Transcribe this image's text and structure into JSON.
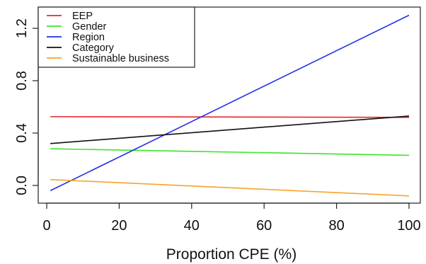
{
  "chart_data": {
    "type": "line",
    "title": "",
    "xlabel": "Proportion CPE (%)",
    "ylabel": "",
    "xlim": [
      1,
      100
    ],
    "ylim": [
      -0.06,
      1.34
    ],
    "x_ticks": [
      0,
      20,
      40,
      60,
      80,
      100
    ],
    "x_tick_labels": [
      "0",
      "20",
      "40",
      "60",
      "80",
      "100"
    ],
    "y_ticks": [
      0.0,
      0.4,
      0.8,
      1.2
    ],
    "y_tick_labels": [
      "0.0",
      "0.4",
      "0.8",
      "1.2"
    ],
    "grid": false,
    "legend_position": "top-left",
    "series": [
      {
        "name": "EEP",
        "color": "#e8272b",
        "x": [
          1,
          100
        ],
        "y": [
          0.525,
          0.52
        ]
      },
      {
        "name": "Gender",
        "color": "#3be62b",
        "x": [
          1,
          100
        ],
        "y": [
          0.28,
          0.23
        ]
      },
      {
        "name": "Region",
        "color": "#2330e8",
        "x": [
          1,
          100
        ],
        "y": [
          -0.04,
          1.3
        ]
      },
      {
        "name": "Category",
        "color": "#111111",
        "x": [
          1,
          100
        ],
        "y": [
          0.32,
          0.53
        ]
      },
      {
        "name": "Sustainable business",
        "color": "#f7a42b",
        "x": [
          1,
          100
        ],
        "y": [
          0.045,
          -0.08
        ]
      }
    ]
  }
}
